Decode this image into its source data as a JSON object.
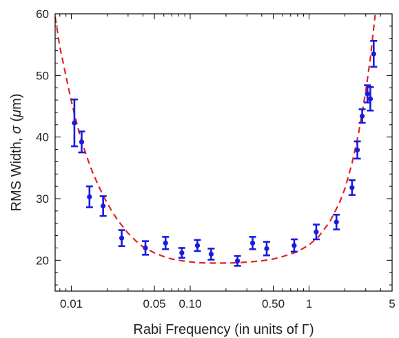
{
  "chart_data": {
    "type": "scatter",
    "title": "",
    "xlabel": "Rabi Frequency (in units of Γ)",
    "ylabel_prefix": "RMS Width, ",
    "ylabel_sigma": "σ",
    "ylabel_unit_open": " (",
    "ylabel_unit_mu": "μ",
    "ylabel_unit_rest": "m)",
    "x_scale": "log",
    "xlim": [
      0.0073,
      5.0
    ],
    "ylim": [
      15,
      60
    ],
    "x_ticks": [
      0.01,
      0.05,
      0.1,
      0.5,
      1,
      5
    ],
    "x_tick_labels": [
      "0.01",
      "0.05",
      "0.10",
      "0.50",
      "1",
      "5"
    ],
    "y_ticks": [
      20,
      30,
      40,
      50,
      60
    ],
    "y_tick_labels": [
      "20",
      "30",
      "40",
      "50",
      "60"
    ],
    "grid": false,
    "series": [
      {
        "kind": "points_with_errorbars",
        "color": "#1a1adf",
        "x": [
          0.0106,
          0.0122,
          0.0142,
          0.0185,
          0.0265,
          0.042,
          0.062,
          0.085,
          0.115,
          0.15,
          0.25,
          0.335,
          0.44,
          0.75,
          1.15,
          1.7,
          2.3,
          2.55,
          2.8,
          3.1,
          3.28,
          3.5
        ],
        "y": [
          42.3,
          39.2,
          30.3,
          28.8,
          23.6,
          22.0,
          22.8,
          21.2,
          22.4,
          21.0,
          19.9,
          22.8,
          21.9,
          22.4,
          24.6,
          26.2,
          31.8,
          37.9,
          43.4,
          47.0,
          46.2,
          53.5
        ],
        "yerr": [
          3.8,
          1.7,
          1.7,
          1.6,
          1.3,
          1.1,
          1.0,
          0.8,
          0.9,
          0.9,
          0.8,
          1.0,
          1.1,
          1.0,
          1.2,
          1.2,
          1.2,
          1.4,
          1.1,
          1.4,
          1.9,
          2.1
        ]
      },
      {
        "kind": "fit_curve",
        "style": "dashed",
        "color": "#e32222",
        "x": [
          0.0073,
          0.008,
          0.009,
          0.01,
          0.011,
          0.012,
          0.0135,
          0.015,
          0.017,
          0.019,
          0.022,
          0.025,
          0.03,
          0.035,
          0.04,
          0.05,
          0.06,
          0.07,
          0.08,
          0.09,
          0.1,
          0.12,
          0.15,
          0.2,
          0.25,
          0.3,
          0.4,
          0.5,
          0.6,
          0.8,
          1.0,
          1.2,
          1.5,
          1.8,
          2.0,
          2.3,
          2.6,
          3.0,
          3.3,
          3.6
        ],
        "y": [
          59.5,
          54.6,
          49.9,
          45.8,
          42.5,
          39.8,
          36.8,
          34.4,
          32.0,
          30.1,
          27.9,
          26.3,
          24.4,
          23.1,
          22.2,
          21.2,
          20.6,
          20.2,
          20.0,
          19.85,
          19.75,
          19.6,
          19.55,
          19.55,
          19.6,
          19.7,
          19.9,
          20.2,
          20.6,
          21.4,
          22.5,
          23.8,
          26.3,
          29.3,
          31.6,
          35.7,
          40.4,
          47.4,
          53.2,
          59.8
        ]
      }
    ]
  }
}
